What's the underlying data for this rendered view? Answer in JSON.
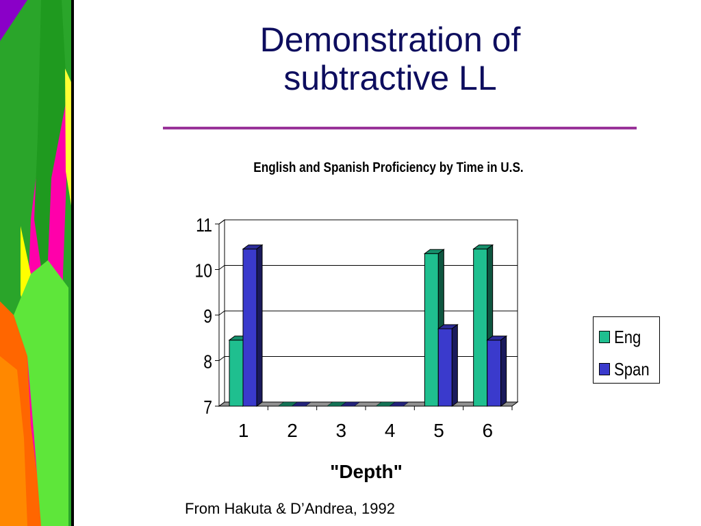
{
  "slide": {
    "title": "Demonstration of subtractive LL",
    "source": "From Hakuta & D’Andrea, 1992"
  },
  "colors": {
    "title": "#0d0d5e",
    "rule": "#993399",
    "eng": "#1fbf8f",
    "span": "#3a3acc"
  },
  "chart_data": {
    "type": "bar",
    "title": "English and Spanish Proficiency by Time in U.S.",
    "xlabel": "\"Depth\"",
    "ylabel": "",
    "categories": [
      "1",
      "2",
      "3",
      "4",
      "5",
      "6"
    ],
    "ylim": [
      7,
      11
    ],
    "yticks": [
      7,
      8,
      9,
      10,
      11
    ],
    "grid": true,
    "three_d": true,
    "legend_position": "right",
    "series": [
      {
        "name": "Eng",
        "color": "#1fbf8f",
        "values": [
          8.45,
          7,
          7,
          7,
          10.35,
          10.45
        ]
      },
      {
        "name": "Span",
        "color": "#3a3acc",
        "values": [
          10.45,
          7,
          7,
          7,
          8.7,
          8.45
        ]
      }
    ]
  }
}
